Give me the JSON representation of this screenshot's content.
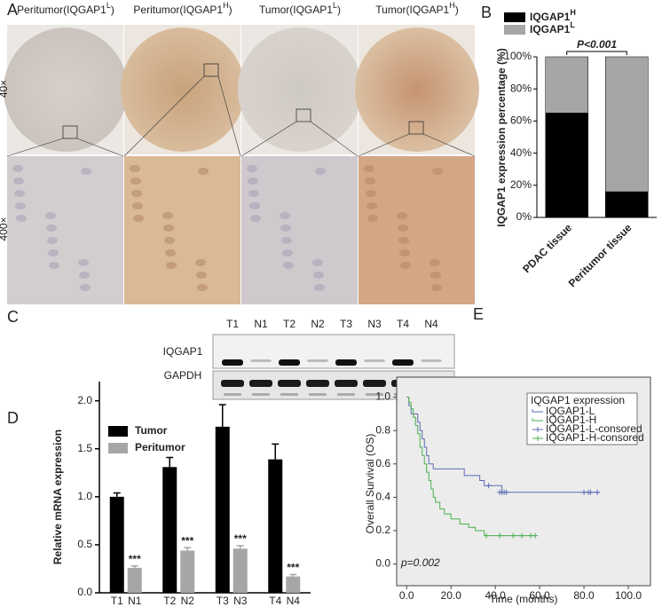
{
  "figure": {
    "panel_a": {
      "label": "A",
      "columns": [
        {
          "base": "Peritumor(IQGAP1",
          "sup": "L",
          "tail": ")"
        },
        {
          "base": "Peritumor(IQGAP1",
          "sup": "H",
          "tail": ")"
        },
        {
          "base": "Tumor(IQGAP1",
          "sup": "L",
          "tail": ")"
        },
        {
          "base": "Tumor(IQGAP1",
          "sup": "H",
          "tail": ")"
        }
      ],
      "rows": [
        "40×",
        "400×"
      ]
    },
    "panel_c": {
      "label": "C",
      "lanes": [
        "T1",
        "N1",
        "T2",
        "N2",
        "T3",
        "N3",
        "T4",
        "N4"
      ],
      "blots": [
        "IQGAP1",
        "GAPDH"
      ]
    }
  },
  "chart_data": [
    {
      "panel": "B",
      "type": "stacked_bar",
      "categories": [
        "PDAC tissue",
        "Peritumor tissue"
      ],
      "series": [
        {
          "name": "IQGAP1",
          "name_sup": "H",
          "color": "#000000",
          "values": [
            65,
            16
          ]
        },
        {
          "name": "IQGAP1",
          "name_sup": "L",
          "color": "#a6a6a6",
          "values": [
            35,
            84
          ]
        }
      ],
      "ylabel": "IQGAP1 expression percentage (%)",
      "ylim": [
        0,
        100
      ],
      "yticks": [
        {
          "value": 0,
          "label": "0%"
        },
        {
          "value": 20,
          "label": "20%"
        },
        {
          "value": 40,
          "label": "40%"
        },
        {
          "value": 60,
          "label": "60%"
        },
        {
          "value": 80,
          "label": "80%"
        },
        {
          "value": 100,
          "label": "100%"
        }
      ],
      "annotation": "P<0.001"
    },
    {
      "panel": "D",
      "type": "grouped_bar",
      "series": [
        {
          "name": "Tumor",
          "color": "#000000",
          "labels": [
            "T1",
            "T2",
            "T3",
            "T4"
          ],
          "values": [
            1.0,
            1.31,
            1.73,
            1.39
          ],
          "errors": [
            0.04,
            0.1,
            0.23,
            0.16
          ]
        },
        {
          "name": "Peritumor",
          "color": "#a6a6a6",
          "labels": [
            "N1",
            "N2",
            "N3",
            "N4"
          ],
          "values": [
            0.26,
            0.44,
            0.46,
            0.17
          ],
          "errors": [
            0.02,
            0.03,
            0.03,
            0.02
          ],
          "significance": [
            "***",
            "***",
            "***",
            "***"
          ]
        }
      ],
      "ylabel": "Relative mRNA expression",
      "ylim": [
        0,
        2.2
      ],
      "yticks": [
        {
          "value": 0,
          "label": "0.0"
        },
        0.5,
        {
          "value": 1,
          "label": "1.0"
        },
        1.5,
        {
          "value": 2,
          "label": "2.0"
        }
      ]
    },
    {
      "panel": "E",
      "type": "step",
      "legend_title": "IQGAP1 expression",
      "background": "#ececec",
      "series": [
        {
          "name": "IQGAP1-L",
          "color": "#5a6cb5",
          "x": [
            0,
            1,
            2,
            5,
            6,
            7,
            8,
            9,
            10,
            12,
            26,
            33,
            35,
            43,
            87
          ],
          "values": [
            1.0,
            0.95,
            0.9,
            0.85,
            0.8,
            0.75,
            0.7,
            0.65,
            0.6,
            0.57,
            0.53,
            0.5,
            0.47,
            0.43,
            0.43
          ]
        },
        {
          "name": "IQGAP1-H",
          "color": "#4caf50",
          "x": [
            0,
            1,
            2,
            3,
            4,
            5,
            6,
            7,
            8,
            9,
            10,
            11,
            12,
            13,
            15,
            17,
            20,
            24,
            28,
            31,
            35,
            58
          ],
          "values": [
            1.0,
            0.97,
            0.93,
            0.88,
            0.83,
            0.78,
            0.7,
            0.65,
            0.6,
            0.55,
            0.5,
            0.45,
            0.4,
            0.37,
            0.33,
            0.3,
            0.27,
            0.24,
            0.22,
            0.2,
            0.17,
            0.17
          ]
        },
        {
          "name": "IQGAP1-L-consored",
          "color": "#5a6cb5",
          "marker": "+",
          "x": [
            37,
            42,
            43,
            44,
            45,
            80,
            82,
            83,
            86
          ],
          "values": [
            0.47,
            0.43,
            0.43,
            0.43,
            0.43,
            0.43,
            0.43,
            0.43,
            0.43
          ]
        },
        {
          "name": "IQGAP1-H-consored",
          "color": "#4caf50",
          "marker": "+",
          "x": [
            36,
            42,
            48,
            52,
            56,
            58
          ],
          "values": [
            0.17,
            0.17,
            0.17,
            0.17,
            0.17,
            0.17
          ]
        }
      ],
      "xlabel": "Time (months)",
      "ylabel": "Overall Survival (OS)",
      "xlim": [
        -4.5,
        110
      ],
      "ylim": [
        -0.13,
        1.12
      ],
      "xticks": [
        {
          "value": 0,
          "label": "0.0"
        },
        {
          "value": 20,
          "label": "20.0"
        },
        {
          "value": 40,
          "label": "40.0"
        },
        {
          "value": 60,
          "label": "60.0"
        },
        {
          "value": 80,
          "label": "80.0"
        },
        {
          "value": 100,
          "label": "100.0"
        }
      ],
      "yticks": [
        {
          "value": 0,
          "label": "0.0"
        },
        0.2,
        0.4,
        0.6,
        0.8,
        {
          "value": 1,
          "label": "1.0"
        }
      ],
      "annotation": "p=0.002"
    }
  ]
}
